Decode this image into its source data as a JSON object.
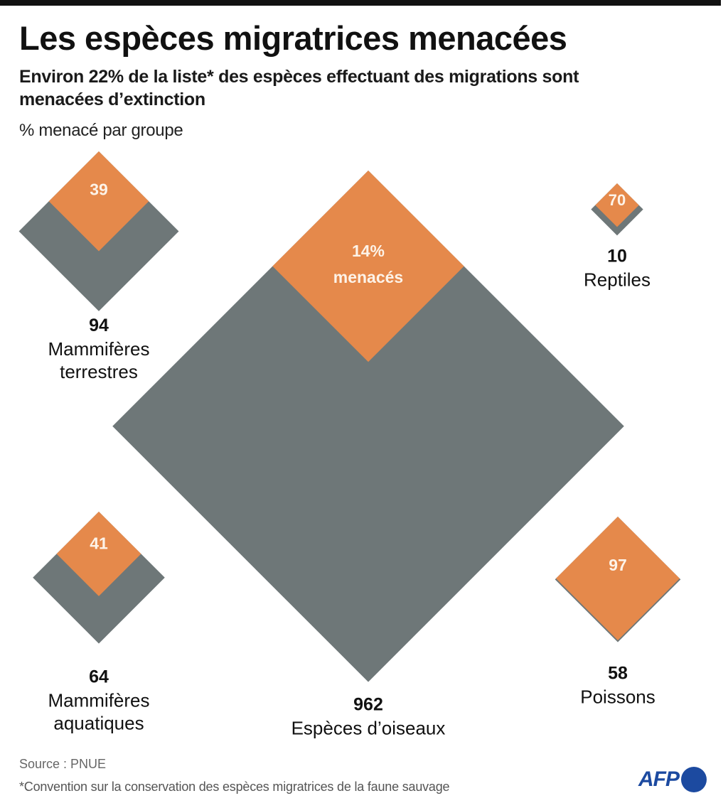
{
  "header": {
    "title": "Les espèces migratrices menacées",
    "subtitle": "Environ 22% de la liste* des espèces effectuant des migrations sont menacées d’extinction",
    "unit_label": "% menacé par groupe"
  },
  "colors": {
    "threatened": "#E5894B",
    "total": "#6E7778",
    "inner_text": "#FDF3E8",
    "afp_blue": "#1C4AA0"
  },
  "chart_data": {
    "type": "proportional-area-diamonds",
    "title": "Les espèces migratrices menacées",
    "subtitle": "Environ 22% de la liste* des espèces effectuant des migrations sont menacées d’extinction",
    "measure_label": "% menacé par groupe",
    "size_encodes": "number of listed migratory species (area)",
    "inner_encodes": "percentage threatened (area share)",
    "groups": [
      {
        "name": "Mammifères terrestres",
        "species_count": 94,
        "pct_threatened": 39,
        "inner_label": "39",
        "position": "top-left"
      },
      {
        "name": "Espèces d’oiseaux",
        "species_count": 962,
        "pct_threatened": 14,
        "inner_label": "14%",
        "inner_label_2": "menacés",
        "position": "center"
      },
      {
        "name": "Reptiles",
        "species_count": 10,
        "pct_threatened": 70,
        "inner_label": "70",
        "position": "top-right"
      },
      {
        "name": "Mammifères aquatiques",
        "species_count": 64,
        "pct_threatened": 41,
        "inner_label": "41",
        "position": "bottom-left"
      },
      {
        "name": "Poissons",
        "species_count": 58,
        "pct_threatened": 97,
        "inner_label": "97",
        "position": "bottom-right"
      }
    ],
    "total_pct_threatened": 22
  },
  "footer": {
    "source": "Source : PNUE",
    "note": "*Convention sur la conservation des espèces migratrices de la faune sauvage",
    "logo_text": "AFP"
  }
}
